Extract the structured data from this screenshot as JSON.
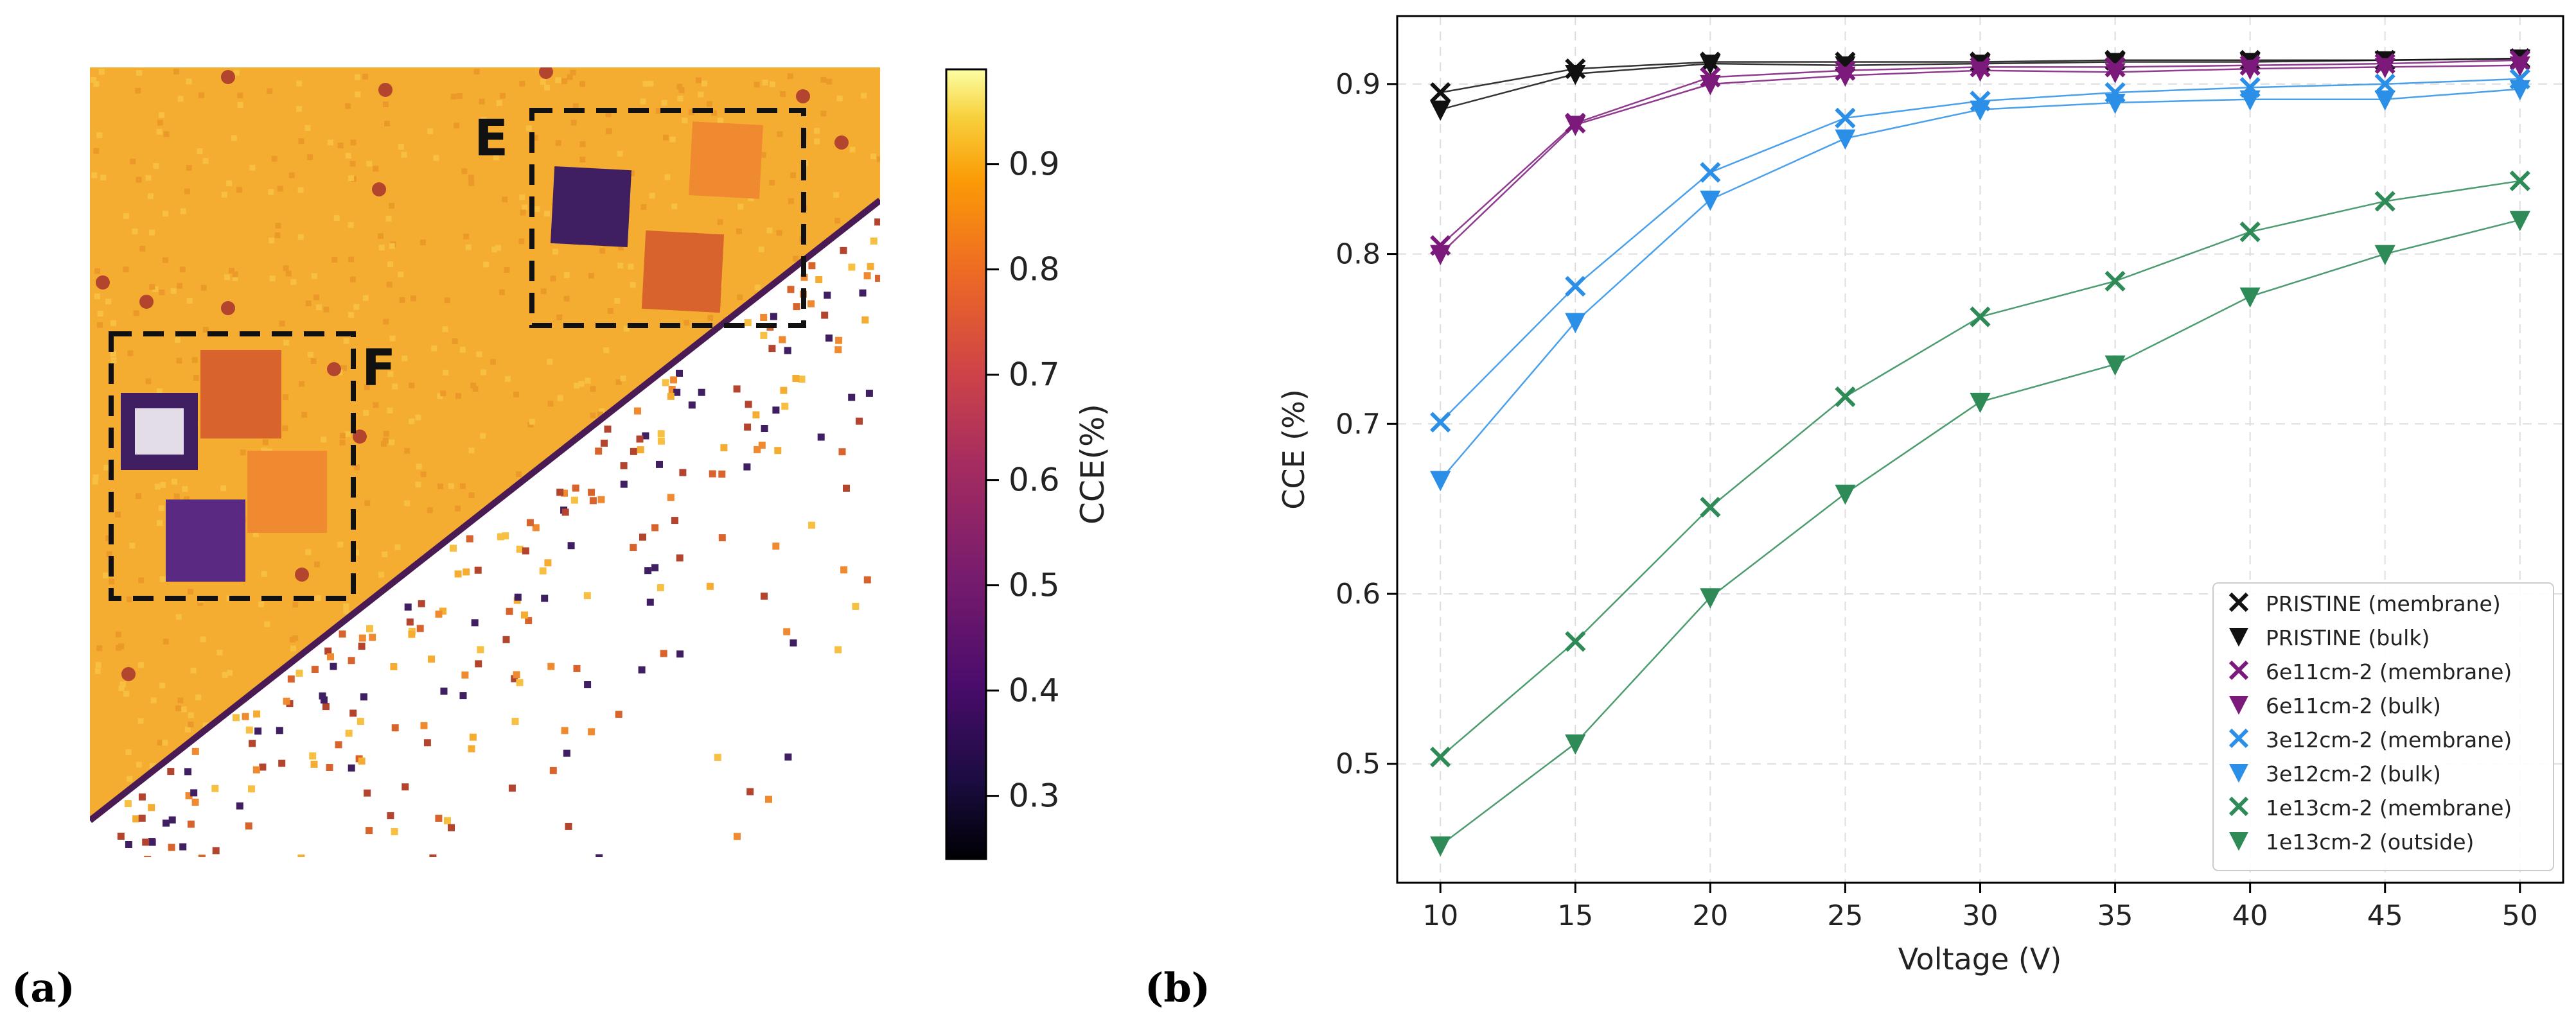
{
  "panels": {
    "a": {
      "label": "(a)"
    },
    "b": {
      "label": "(b)"
    }
  },
  "map": {
    "regions": [
      {
        "label": "E"
      },
      {
        "label": "F"
      }
    ],
    "colorbar": {
      "label": "CCE(%)",
      "ticks": [
        "0.3",
        "0.4",
        "0.5",
        "0.6",
        "0.7",
        "0.8",
        "0.9"
      ],
      "range": [
        0.24,
        0.99
      ],
      "colormap": "inferno"
    },
    "colors": {
      "background": "#f5ad31",
      "dark_square": "#3f1f62",
      "mid_square": "#d8632d",
      "light_square": "#f08a30"
    }
  },
  "chart_data": [
    {
      "type": "image",
      "colorbar": {
        "label": "CCE(%)",
        "range": [
          0.24,
          0.99
        ],
        "ticks": [
          0.3,
          0.4,
          0.5,
          0.6,
          0.7,
          0.8,
          0.9
        ]
      },
      "regions": [
        "E",
        "F"
      ]
    },
    {
      "type": "line",
      "title": "",
      "xlabel": "Voltage (V)",
      "ylabel": "CCE (%)",
      "xlim": [
        8.4,
        51.6
      ],
      "ylim": [
        0.43,
        0.94
      ],
      "x": [
        10,
        15,
        20,
        25,
        30,
        35,
        40,
        45,
        50
      ],
      "xticks": [
        "10",
        "15",
        "20",
        "25",
        "30",
        "35",
        "40",
        "45",
        "50"
      ],
      "yticks": [
        "0.5",
        "0.6",
        "0.7",
        "0.8",
        "0.9"
      ],
      "grid": true,
      "legend": "bottom-right",
      "series": [
        {
          "name": "PRISTINE (membrane)",
          "marker": "x",
          "color": "#111111",
          "values": [
            0.895,
            0.909,
            0.913,
            0.913,
            0.913,
            0.914,
            0.914,
            0.914,
            0.915
          ]
        },
        {
          "name": "PRISTINE (bulk)",
          "marker": "v",
          "color": "#111111",
          "values": [
            0.885,
            0.906,
            0.912,
            0.911,
            0.912,
            0.913,
            0.913,
            0.914,
            0.915
          ]
        },
        {
          "name": "6e11cm-2 (membrane)",
          "marker": "x",
          "color": "#7b1a7b",
          "values": [
            0.805,
            0.877,
            0.904,
            0.908,
            0.91,
            0.91,
            0.911,
            0.912,
            0.914
          ]
        },
        {
          "name": "6e11cm-2 (bulk)",
          "marker": "v",
          "color": "#7b1a7b",
          "values": [
            0.8,
            0.876,
            0.9,
            0.905,
            0.908,
            0.907,
            0.909,
            0.91,
            0.911
          ]
        },
        {
          "name": "3e12cm-2 (membrane)",
          "marker": "x",
          "color": "#2b8fe8",
          "values": [
            0.701,
            0.781,
            0.848,
            0.88,
            0.89,
            0.895,
            0.898,
            0.9,
            0.903
          ]
        },
        {
          "name": "3e12cm-2 (bulk)",
          "marker": "v",
          "color": "#2b8fe8",
          "values": [
            0.667,
            0.76,
            0.832,
            0.868,
            0.885,
            0.889,
            0.891,
            0.891,
            0.897
          ]
        },
        {
          "name": "1e13cm-2 (membrane)",
          "marker": "x",
          "color": "#2e8b57",
          "values": [
            0.504,
            0.572,
            0.651,
            0.716,
            0.763,
            0.784,
            0.813,
            0.831,
            0.843
          ]
        },
        {
          "name": "1e13cm-2 (outside)",
          "marker": "v",
          "color": "#2e8b57",
          "values": [
            0.452,
            0.512,
            0.598,
            0.659,
            0.713,
            0.735,
            0.775,
            0.8,
            0.82
          ]
        }
      ]
    }
  ]
}
